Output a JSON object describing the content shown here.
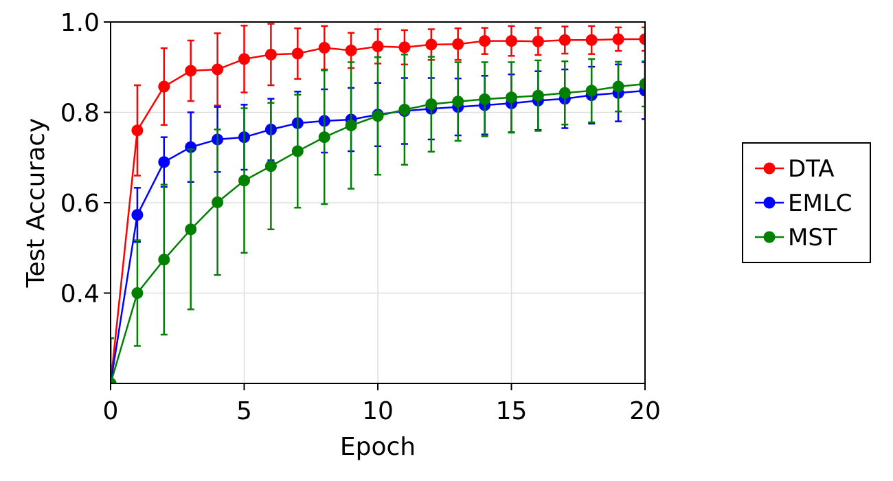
{
  "chart_data": {
    "type": "line",
    "xlabel": "Epoch",
    "ylabel": "Test Accuracy",
    "xlim": [
      0,
      20
    ],
    "ylim": [
      0.2,
      1.0
    ],
    "x_ticks": [
      0,
      5,
      10,
      15,
      20
    ],
    "y_ticks": [
      0.4,
      0.6,
      0.8,
      1.0
    ],
    "x_tick_labels": [
      "0",
      "5",
      "10",
      "15",
      "20"
    ],
    "y_tick_labels": [
      "0.4",
      "0.6",
      "0.8",
      "1.0"
    ],
    "grid": true,
    "legend_position": "right",
    "x": [
      0,
      1,
      2,
      3,
      4,
      5,
      6,
      7,
      8,
      9,
      10,
      11,
      12,
      13,
      14,
      15,
      16,
      17,
      18,
      19,
      20
    ],
    "series": [
      {
        "name": "DTA",
        "color": "#ff0000",
        "values": [
          0.2,
          0.76,
          0.857,
          0.892,
          0.895,
          0.918,
          0.928,
          0.93,
          0.943,
          0.937,
          0.946,
          0.944,
          0.95,
          0.951,
          0.958,
          0.958,
          0.957,
          0.96,
          0.96,
          0.962,
          0.962
        ],
        "errors": [
          0.1,
          0.1,
          0.085,
          0.067,
          0.08,
          0.074,
          0.068,
          0.056,
          0.048,
          0.039,
          0.038,
          0.038,
          0.034,
          0.035,
          0.029,
          0.033,
          0.03,
          0.03,
          0.031,
          0.026,
          0.026
        ]
      },
      {
        "name": "EMLC",
        "color": "#0000ff",
        "values": [
          0.2,
          0.573,
          0.69,
          0.723,
          0.74,
          0.745,
          0.762,
          0.776,
          0.781,
          0.784,
          0.795,
          0.803,
          0.808,
          0.812,
          0.816,
          0.82,
          0.826,
          0.83,
          0.838,
          0.843,
          0.848
        ],
        "errors": [
          0.1,
          0.06,
          0.055,
          0.077,
          0.072,
          0.072,
          0.068,
          0.07,
          0.07,
          0.07,
          0.07,
          0.073,
          0.068,
          0.063,
          0.065,
          0.064,
          0.065,
          0.065,
          0.063,
          0.063,
          0.063
        ]
      },
      {
        "name": "MST",
        "color": "#008000",
        "values": [
          0.2,
          0.4,
          0.474,
          0.541,
          0.601,
          0.649,
          0.681,
          0.714,
          0.745,
          0.771,
          0.792,
          0.806,
          0.818,
          0.824,
          0.829,
          0.833,
          0.837,
          0.843,
          0.848,
          0.857,
          0.863
        ],
        "errors": [
          0.1,
          0.117,
          0.166,
          0.177,
          0.161,
          0.16,
          0.14,
          0.125,
          0.148,
          0.14,
          0.13,
          0.122,
          0.105,
          0.087,
          0.082,
          0.078,
          0.078,
          0.07,
          0.07,
          0.055,
          0.05
        ]
      }
    ]
  }
}
